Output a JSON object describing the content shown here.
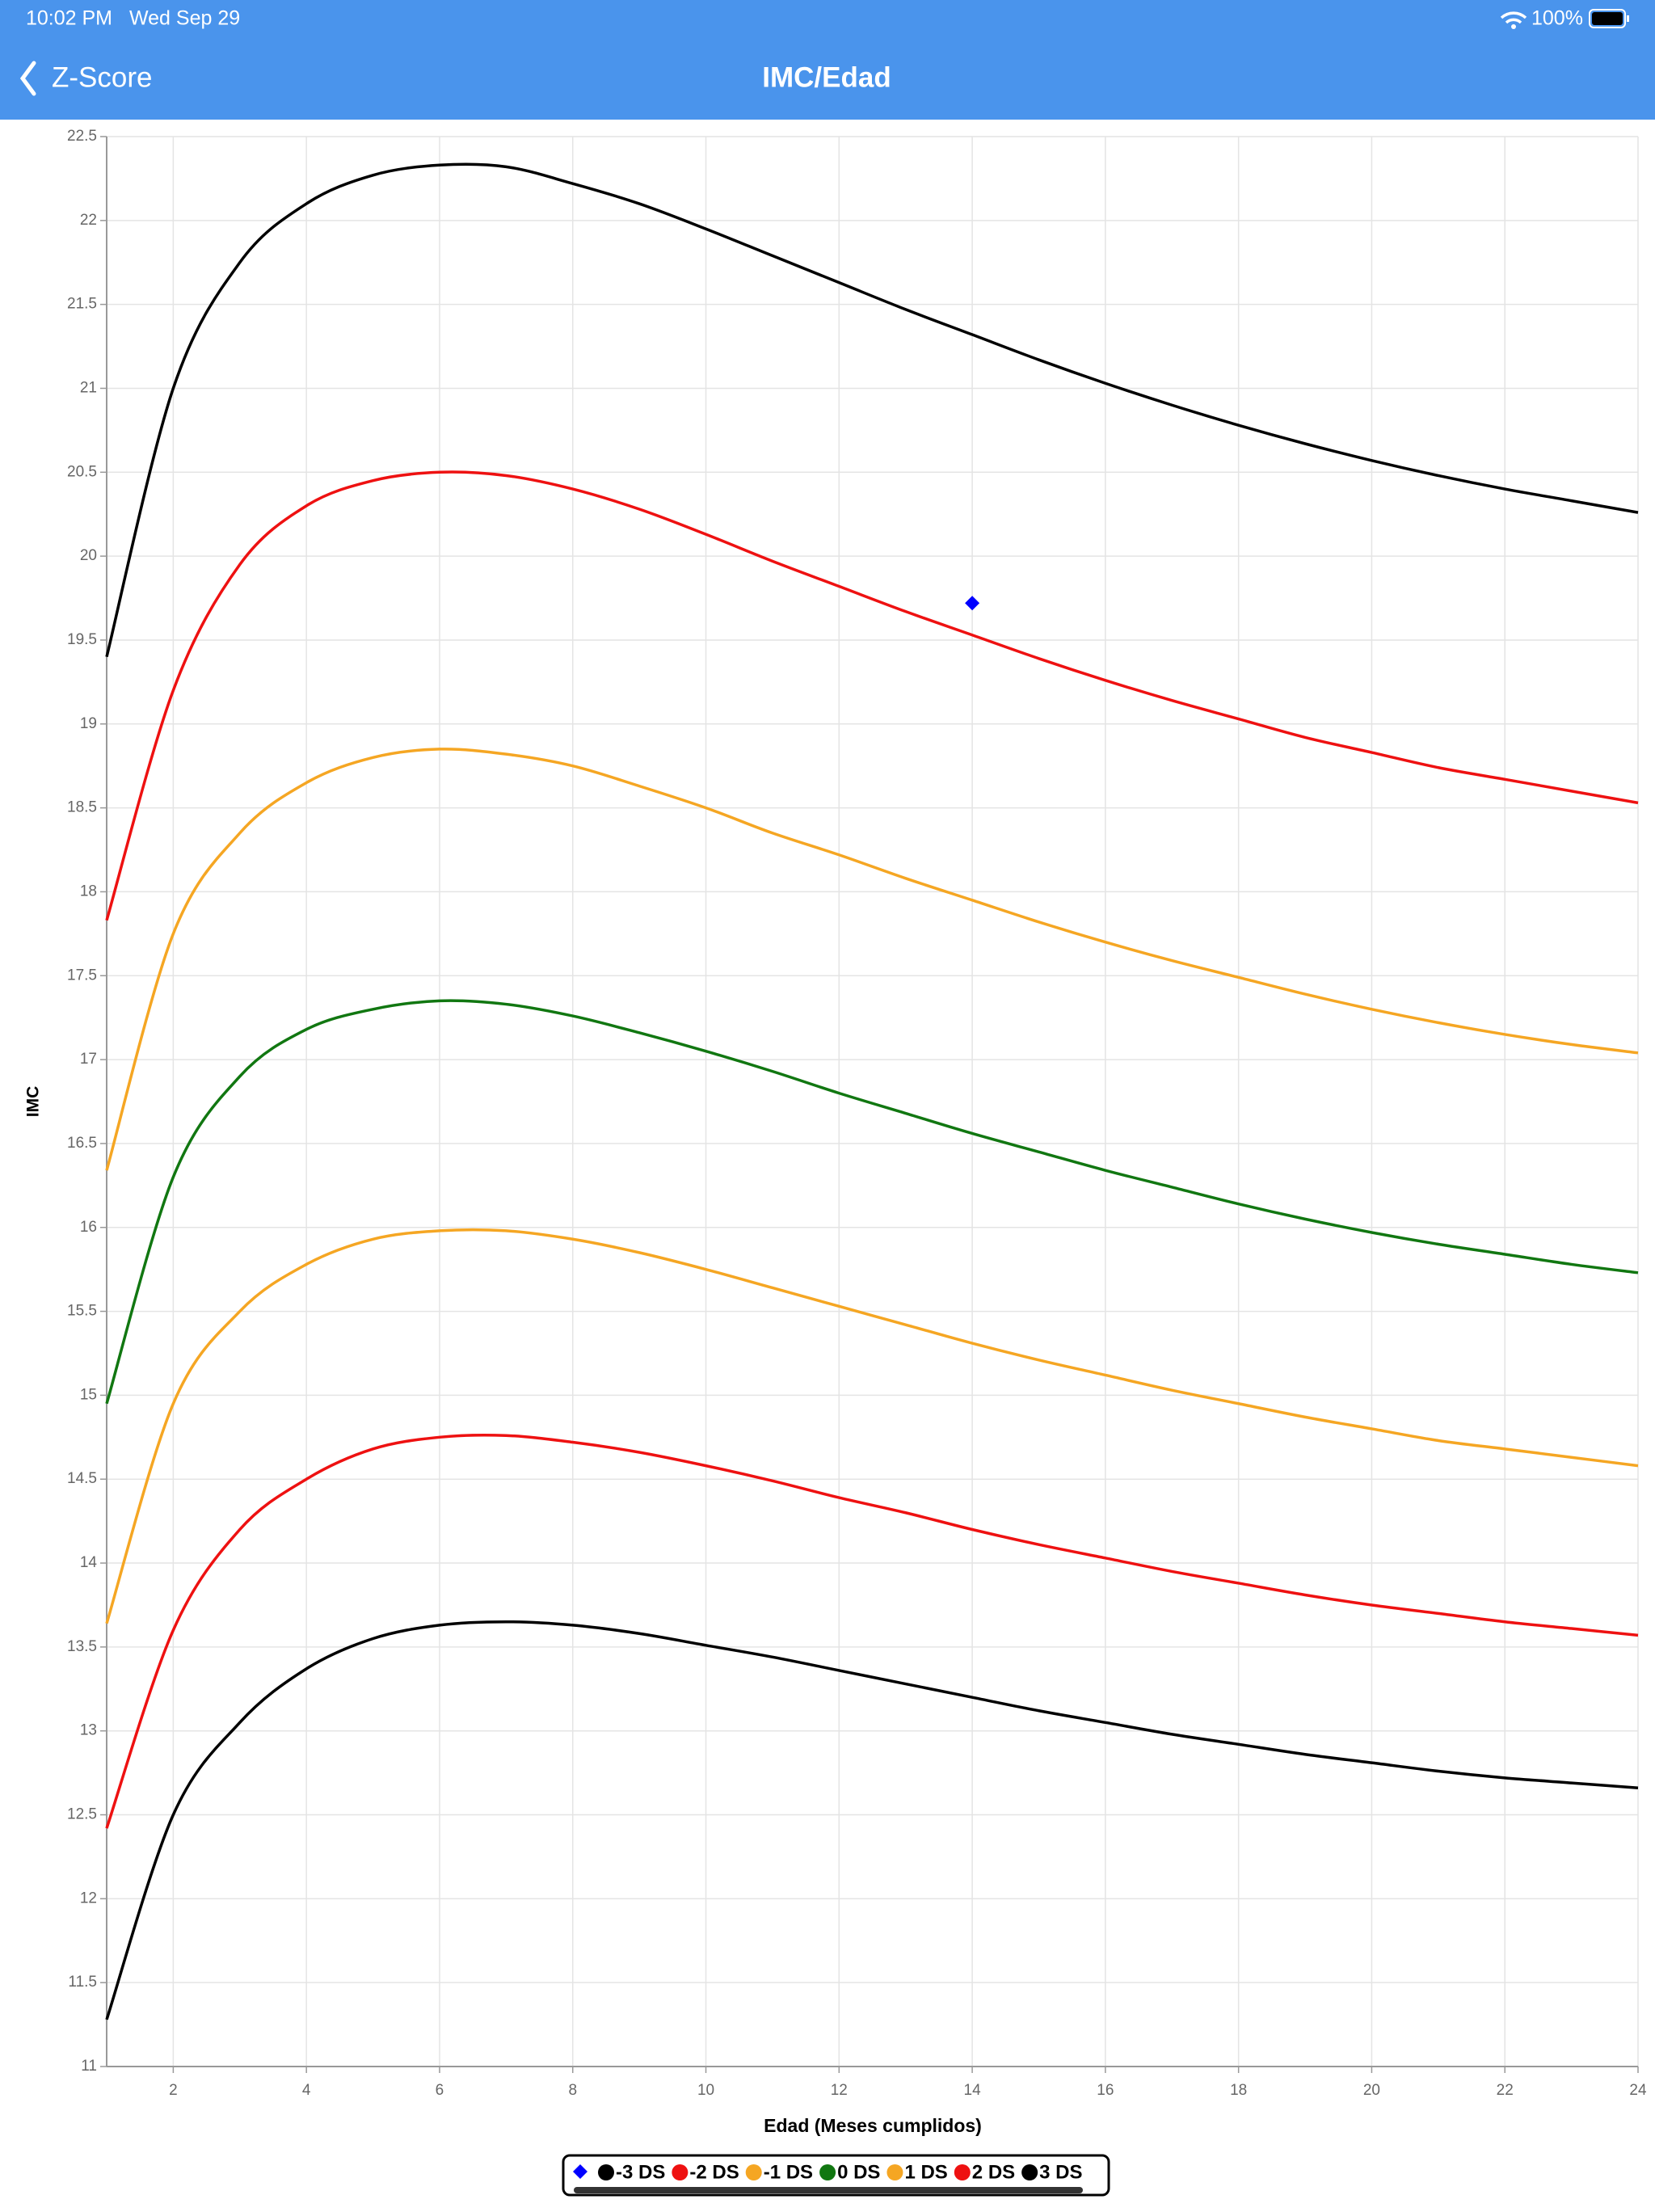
{
  "status_bar": {
    "time": "10:02 PM",
    "date": "Wed Sep 29",
    "battery": "100%"
  },
  "nav": {
    "back": "Z-Score",
    "title": "IMC/Edad"
  },
  "chart_data": {
    "type": "line",
    "xlabel": "Edad (Meses cumplidos)",
    "ylabel": "IMC",
    "x": [
      1,
      2,
      3,
      4,
      5,
      6,
      7,
      8,
      9,
      10,
      11,
      12,
      13,
      14,
      15,
      16,
      17,
      18,
      19,
      20,
      21,
      22,
      23,
      24
    ],
    "xlim": [
      1,
      24
    ],
    "xticks": [
      2,
      4,
      6,
      8,
      10,
      12,
      14,
      16,
      18,
      20,
      22,
      24
    ],
    "ylim": [
      11,
      22.5
    ],
    "yticks": [
      11,
      11.5,
      12,
      12.5,
      13,
      13.5,
      14,
      14.5,
      15,
      15.5,
      16,
      16.5,
      17,
      17.5,
      18,
      18.5,
      19,
      19.5,
      20,
      20.5,
      21,
      21.5,
      22,
      22.5
    ],
    "grid": true,
    "markers": {
      "color": "#0000ff",
      "x": [
        14
      ],
      "values": [
        19.72
      ]
    },
    "series": [
      {
        "name": "-3 DS",
        "color": "#000000",
        "values": [
          11.28,
          12.5,
          13.05,
          13.37,
          13.55,
          13.63,
          13.65,
          13.63,
          13.58,
          13.51,
          13.44,
          13.36,
          13.28,
          13.2,
          13.12,
          13.05,
          12.98,
          12.92,
          12.86,
          12.81,
          12.76,
          12.72,
          12.69,
          12.66
        ]
      },
      {
        "name": "-2 DS",
        "color": "#ee1111",
        "values": [
          12.42,
          13.6,
          14.2,
          14.5,
          14.68,
          14.75,
          14.76,
          14.72,
          14.66,
          14.58,
          14.49,
          14.39,
          14.3,
          14.2,
          14.11,
          14.03,
          13.95,
          13.88,
          13.81,
          13.75,
          13.7,
          13.65,
          13.61,
          13.57
        ]
      },
      {
        "name": "-1 DS",
        "color": "#f5a623",
        "values": [
          13.64,
          14.95,
          15.5,
          15.78,
          15.93,
          15.98,
          15.98,
          15.93,
          15.85,
          15.75,
          15.64,
          15.53,
          15.42,
          15.31,
          15.21,
          15.12,
          15.03,
          14.95,
          14.87,
          14.8,
          14.73,
          14.68,
          14.63,
          14.58
        ]
      },
      {
        "name": "0 DS",
        "color": "#117711",
        "values": [
          14.95,
          16.3,
          16.9,
          17.18,
          17.3,
          17.35,
          17.33,
          17.26,
          17.16,
          17.05,
          16.93,
          16.8,
          16.68,
          16.56,
          16.45,
          16.34,
          16.24,
          16.14,
          16.05,
          15.97,
          15.9,
          15.84,
          15.78,
          15.73
        ]
      },
      {
        "name": "1 DS",
        "color": "#f5a623",
        "values": [
          16.34,
          17.75,
          18.35,
          18.65,
          18.8,
          18.85,
          18.82,
          18.75,
          18.63,
          18.5,
          18.35,
          18.22,
          18.08,
          17.95,
          17.82,
          17.7,
          17.59,
          17.49,
          17.39,
          17.3,
          17.22,
          17.15,
          17.09,
          17.04
        ]
      },
      {
        "name": "2 DS",
        "color": "#ee1111",
        "values": [
          17.83,
          19.2,
          19.95,
          20.3,
          20.45,
          20.5,
          20.48,
          20.4,
          20.28,
          20.13,
          19.97,
          19.82,
          19.67,
          19.53,
          19.39,
          19.26,
          19.14,
          19.03,
          18.92,
          18.83,
          18.74,
          18.67,
          18.6,
          18.53
        ]
      },
      {
        "name": "3 DS",
        "color": "#000000",
        "values": [
          19.4,
          21.0,
          21.75,
          22.1,
          22.27,
          22.33,
          22.32,
          22.22,
          22.1,
          21.95,
          21.79,
          21.63,
          21.47,
          21.32,
          21.17,
          21.03,
          20.9,
          20.78,
          20.67,
          20.57,
          20.48,
          20.4,
          20.33,
          20.26
        ]
      }
    ]
  }
}
